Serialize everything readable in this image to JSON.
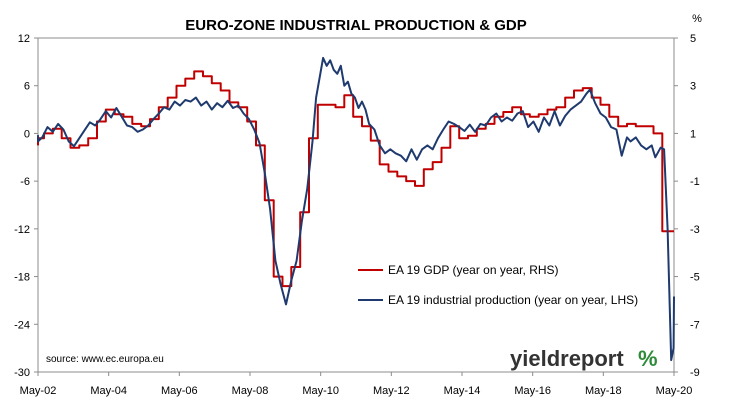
{
  "chart_data": {
    "type": "line",
    "title": "EURO-ZONE INDUSTRIAL PRODUCTION & GDP",
    "right_axis_unit": "%",
    "source": "source: www.ec.europa.eu",
    "brand": {
      "word": "yieldreport",
      "symbol": "%"
    },
    "x_tick_labels": [
      "May-02",
      "May-04",
      "May-06",
      "May-08",
      "May-10",
      "May-12",
      "May-14",
      "May-16",
      "May-18",
      "May-20"
    ],
    "x_range": [
      2002.33,
      2020.33
    ],
    "left_axis": {
      "range": [
        -30,
        12
      ],
      "ticks": [
        "12",
        "6",
        "0",
        "-6",
        "-12",
        "-18",
        "-24",
        "-30"
      ]
    },
    "right_axis": {
      "range": [
        -9,
        5
      ],
      "ticks": [
        "5",
        "3",
        "1",
        "-1",
        "-3",
        "-5",
        "-7",
        "-9"
      ]
    },
    "legend_position": "center-right",
    "series": [
      {
        "name": "EA 19 GDP (year on year, RHS)",
        "axis": "right",
        "color": "#c00000",
        "step": true,
        "points": [
          [
            2002.0,
            0.5
          ],
          [
            2002.25,
            0.8
          ],
          [
            2002.5,
            1.0
          ],
          [
            2002.75,
            1.2
          ],
          [
            2003.0,
            0.8
          ],
          [
            2003.25,
            0.4
          ],
          [
            2003.5,
            0.5
          ],
          [
            2003.75,
            0.8
          ],
          [
            2004.0,
            1.5
          ],
          [
            2004.25,
            2.0
          ],
          [
            2004.5,
            1.8
          ],
          [
            2004.75,
            1.7
          ],
          [
            2005.0,
            1.4
          ],
          [
            2005.25,
            1.3
          ],
          [
            2005.5,
            1.6
          ],
          [
            2005.75,
            2.1
          ],
          [
            2006.0,
            2.5
          ],
          [
            2006.25,
            3.0
          ],
          [
            2006.5,
            3.3
          ],
          [
            2006.75,
            3.6
          ],
          [
            2007.0,
            3.4
          ],
          [
            2007.25,
            3.1
          ],
          [
            2007.5,
            2.8
          ],
          [
            2007.75,
            2.3
          ],
          [
            2008.0,
            2.1
          ],
          [
            2008.25,
            1.5
          ],
          [
            2008.5,
            0.5
          ],
          [
            2008.75,
            -1.8
          ],
          [
            2009.0,
            -5.0
          ],
          [
            2009.25,
            -5.4
          ],
          [
            2009.5,
            -4.6
          ],
          [
            2009.75,
            -2.3
          ],
          [
            2010.0,
            0.8
          ],
          [
            2010.25,
            2.2
          ],
          [
            2010.5,
            2.2
          ],
          [
            2010.75,
            2.1
          ],
          [
            2011.0,
            2.6
          ],
          [
            2011.25,
            1.7
          ],
          [
            2011.5,
            1.3
          ],
          [
            2011.75,
            0.7
          ],
          [
            2012.0,
            -0.3
          ],
          [
            2012.25,
            -0.6
          ],
          [
            2012.5,
            -0.8
          ],
          [
            2012.75,
            -1.0
          ],
          [
            2013.0,
            -1.2
          ],
          [
            2013.25,
            -0.5
          ],
          [
            2013.5,
            -0.2
          ],
          [
            2013.75,
            0.4
          ],
          [
            2014.0,
            1.3
          ],
          [
            2014.25,
            0.8
          ],
          [
            2014.5,
            0.9
          ],
          [
            2014.75,
            1.2
          ],
          [
            2015.0,
            1.4
          ],
          [
            2015.25,
            1.7
          ],
          [
            2015.5,
            1.9
          ],
          [
            2015.75,
            2.1
          ],
          [
            2016.0,
            1.8
          ],
          [
            2016.25,
            1.7
          ],
          [
            2016.5,
            1.8
          ],
          [
            2016.75,
            2.0
          ],
          [
            2017.0,
            2.1
          ],
          [
            2017.25,
            2.5
          ],
          [
            2017.5,
            2.8
          ],
          [
            2017.75,
            2.9
          ],
          [
            2018.0,
            2.5
          ],
          [
            2018.25,
            2.2
          ],
          [
            2018.5,
            1.7
          ],
          [
            2018.75,
            1.3
          ],
          [
            2019.0,
            1.4
          ],
          [
            2019.25,
            1.3
          ],
          [
            2019.5,
            1.3
          ],
          [
            2019.75,
            1.0
          ],
          [
            2020.0,
            -3.1
          ],
          [
            2020.25,
            -3.1
          ],
          [
            2020.33,
            -3.1
          ]
        ]
      },
      {
        "name": "EA 19 industrial production (year on year, LHS)",
        "axis": "left",
        "color": "#1f3a6e",
        "step": false,
        "points": [
          [
            2002.0,
            -0.7
          ],
          [
            2002.15,
            -0.3
          ],
          [
            2002.3,
            -1.0
          ],
          [
            2002.45,
            -0.5
          ],
          [
            2002.6,
            0.8
          ],
          [
            2002.75,
            0.2
          ],
          [
            2002.9,
            1.2
          ],
          [
            2003.05,
            0.5
          ],
          [
            2003.2,
            -1.0
          ],
          [
            2003.35,
            -1.6
          ],
          [
            2003.5,
            -0.6
          ],
          [
            2003.65,
            0.4
          ],
          [
            2003.8,
            1.4
          ],
          [
            2003.95,
            1.0
          ],
          [
            2004.1,
            1.8
          ],
          [
            2004.25,
            2.8
          ],
          [
            2004.4,
            2.0
          ],
          [
            2004.55,
            3.2
          ],
          [
            2004.7,
            2.1
          ],
          [
            2004.85,
            1.0
          ],
          [
            2005.0,
            0.8
          ],
          [
            2005.15,
            0.2
          ],
          [
            2005.3,
            0.5
          ],
          [
            2005.45,
            1.0
          ],
          [
            2005.6,
            1.8
          ],
          [
            2005.75,
            2.5
          ],
          [
            2005.9,
            3.3
          ],
          [
            2006.05,
            3.0
          ],
          [
            2006.2,
            4.0
          ],
          [
            2006.35,
            3.5
          ],
          [
            2006.5,
            4.2
          ],
          [
            2006.65,
            4.0
          ],
          [
            2006.8,
            4.5
          ],
          [
            2006.95,
            3.5
          ],
          [
            2007.1,
            4.0
          ],
          [
            2007.25,
            3.0
          ],
          [
            2007.4,
            3.8
          ],
          [
            2007.55,
            3.3
          ],
          [
            2007.7,
            4.1
          ],
          [
            2007.85,
            3.2
          ],
          [
            2008.0,
            3.5
          ],
          [
            2008.15,
            2.5
          ],
          [
            2008.3,
            1.8
          ],
          [
            2008.45,
            0.5
          ],
          [
            2008.6,
            -1.2
          ],
          [
            2008.75,
            -5.0
          ],
          [
            2008.9,
            -9.5
          ],
          [
            2009.05,
            -16.0
          ],
          [
            2009.2,
            -19.0
          ],
          [
            2009.35,
            -21.5
          ],
          [
            2009.5,
            -18.5
          ],
          [
            2009.65,
            -16.0
          ],
          [
            2009.8,
            -11.0
          ],
          [
            2009.95,
            -7.0
          ],
          [
            2010.1,
            -1.0
          ],
          [
            2010.2,
            4.5
          ],
          [
            2010.3,
            7.0
          ],
          [
            2010.4,
            9.5
          ],
          [
            2010.5,
            8.5
          ],
          [
            2010.6,
            9.2
          ],
          [
            2010.7,
            8.0
          ],
          [
            2010.8,
            7.5
          ],
          [
            2010.9,
            8.5
          ],
          [
            2011.0,
            6.0
          ],
          [
            2011.1,
            6.5
          ],
          [
            2011.2,
            5.0
          ],
          [
            2011.3,
            4.5
          ],
          [
            2011.4,
            3.2
          ],
          [
            2011.5,
            4.0
          ],
          [
            2011.6,
            3.0
          ],
          [
            2011.7,
            1.2
          ],
          [
            2011.85,
            0.5
          ],
          [
            2012.0,
            -1.5
          ],
          [
            2012.15,
            -2.5
          ],
          [
            2012.3,
            -2.0
          ],
          [
            2012.45,
            -2.5
          ],
          [
            2012.6,
            -2.8
          ],
          [
            2012.75,
            -3.5
          ],
          [
            2012.9,
            -2.0
          ],
          [
            2013.05,
            -3.3
          ],
          [
            2013.2,
            -2.0
          ],
          [
            2013.35,
            -1.5
          ],
          [
            2013.5,
            -2.0
          ],
          [
            2013.65,
            -0.6
          ],
          [
            2013.8,
            0.5
          ],
          [
            2013.95,
            1.5
          ],
          [
            2014.1,
            1.2
          ],
          [
            2014.25,
            0.8
          ],
          [
            2014.4,
            0.3
          ],
          [
            2014.55,
            1.1
          ],
          [
            2014.7,
            0.2
          ],
          [
            2014.85,
            1.2
          ],
          [
            2015.0,
            1.0
          ],
          [
            2015.15,
            2.0
          ],
          [
            2015.3,
            2.5
          ],
          [
            2015.45,
            1.5
          ],
          [
            2015.6,
            2.0
          ],
          [
            2015.75,
            1.6
          ],
          [
            2015.9,
            2.5
          ],
          [
            2016.05,
            2.8
          ],
          [
            2016.2,
            0.8
          ],
          [
            2016.35,
            1.5
          ],
          [
            2016.5,
            0.2
          ],
          [
            2016.65,
            2.0
          ],
          [
            2016.8,
            1.0
          ],
          [
            2016.95,
            2.8
          ],
          [
            2017.1,
            1.0
          ],
          [
            2017.25,
            2.2
          ],
          [
            2017.4,
            3.0
          ],
          [
            2017.55,
            3.5
          ],
          [
            2017.7,
            4.0
          ],
          [
            2017.85,
            5.0
          ],
          [
            2017.95,
            5.5
          ],
          [
            2018.1,
            3.8
          ],
          [
            2018.25,
            2.5
          ],
          [
            2018.4,
            2.0
          ],
          [
            2018.55,
            0.8
          ],
          [
            2018.7,
            0.5
          ],
          [
            2018.85,
            -2.8
          ],
          [
            2019.0,
            -0.5
          ],
          [
            2019.1,
            -1.0
          ],
          [
            2019.25,
            -0.5
          ],
          [
            2019.4,
            -1.5
          ],
          [
            2019.55,
            -2.0
          ],
          [
            2019.7,
            -1.5
          ],
          [
            2019.8,
            -3.0
          ],
          [
            2019.95,
            -1.8
          ],
          [
            2020.05,
            -2.0
          ],
          [
            2020.15,
            -12.0
          ],
          [
            2020.25,
            -28.5
          ],
          [
            2020.32,
            -27.0
          ],
          [
            2020.38,
            -20.5
          ]
        ]
      }
    ]
  }
}
